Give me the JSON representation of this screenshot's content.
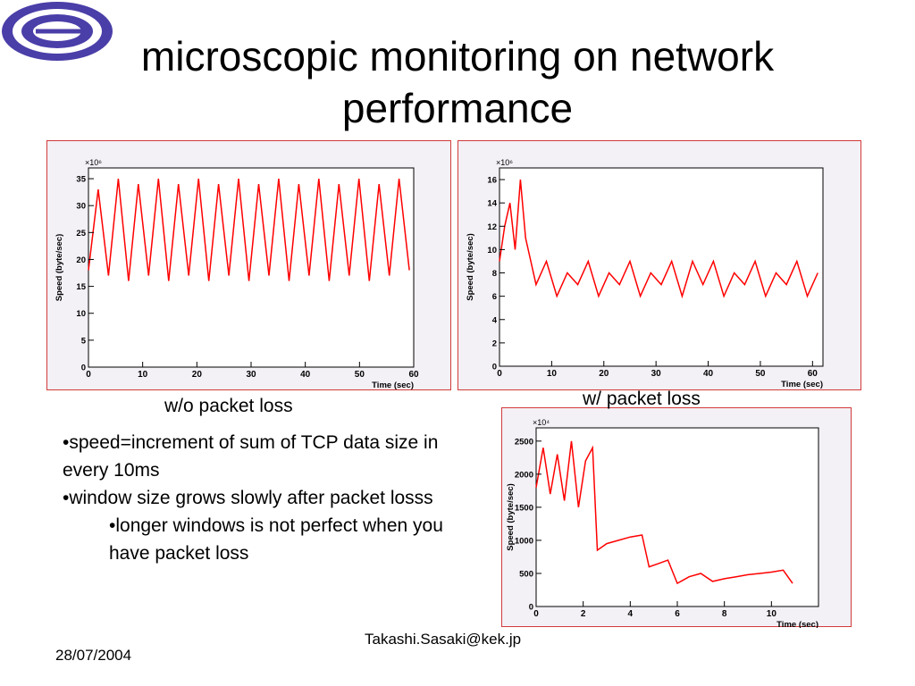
{
  "title": "microscopic monitoring on network performance",
  "captions": {
    "left": "w/o packet loss",
    "right": "w/ packet loss"
  },
  "bullets": [
    "•speed=increment of sum of TCP data size in every 10ms",
    "•window size grows slowly after packet losss"
  ],
  "sub_bullets": [
    "•longer windows is not perfect when you have packet loss"
  ],
  "footer": {
    "email": "Takashi.Sasaki@kek.jp",
    "date": "28/07/2004"
  },
  "colors": {
    "trace": "#ff0000",
    "panel_border": "#d23a3a",
    "panel_bg": "#f3f0f6",
    "logo": "#4a3ea8"
  },
  "chart_data": [
    {
      "type": "line",
      "title": "",
      "xlabel": "Time (sec)",
      "ylabel": "Speed (byte/sec)",
      "y_multiplier": "×10⁶",
      "xlim": [
        0,
        60
      ],
      "ylim": [
        0,
        37
      ],
      "xticks": [
        0,
        10,
        20,
        30,
        40,
        50,
        60
      ],
      "yticks": [
        0,
        5,
        10,
        15,
        20,
        25,
        30,
        35
      ],
      "grid": false,
      "sawtooth": {
        "period_sec": 3.7,
        "start_sec": 0,
        "end_sec": 60,
        "base": 15,
        "peak": 35
      },
      "series": [
        {
          "values_note": "",
          "x": [
            0,
            1.8,
            3.7,
            5.5,
            7.4,
            9.2,
            11.1,
            12.9,
            14.8,
            16.6,
            18.5,
            20.3,
            22.2,
            24.0,
            25.9,
            27.7,
            29.6,
            31.4,
            33.3,
            35.1,
            37.0,
            38.8,
            40.7,
            42.5,
            44.4,
            46.2,
            48.1,
            49.9,
            51.8,
            53.6,
            55.5,
            57.3,
            59.2
          ],
          "y": [
            18,
            33,
            17,
            35,
            16,
            34,
            17,
            35,
            16,
            34,
            17,
            35,
            16,
            34,
            17,
            35,
            16,
            34,
            17,
            35,
            16,
            34,
            17,
            35,
            16,
            34,
            17,
            35,
            16,
            34,
            17,
            35,
            18
          ]
        }
      ]
    },
    {
      "type": "line",
      "title": "",
      "xlabel": "Time (sec)",
      "ylabel": "Speed (byte/sec)",
      "y_multiplier": "×10⁶",
      "xlim": [
        0,
        62
      ],
      "ylim": [
        0,
        17
      ],
      "xticks": [
        0,
        10,
        20,
        30,
        40,
        50,
        60
      ],
      "yticks": [
        0,
        2,
        4,
        6,
        8,
        10,
        12,
        14,
        16
      ],
      "grid": false,
      "series": [
        {
          "x": [
            0,
            1,
            2,
            3,
            4,
            5,
            7,
            9,
            11,
            13,
            15,
            17,
            19,
            21,
            23,
            25,
            27,
            29,
            31,
            33,
            35,
            37,
            39,
            41,
            43,
            45,
            47,
            49,
            51,
            53,
            55,
            57,
            59,
            61
          ],
          "y": [
            9,
            12,
            14,
            10,
            16,
            11,
            7,
            9,
            6,
            8,
            7,
            9,
            6,
            8,
            7,
            9,
            6,
            8,
            7,
            9,
            6,
            9,
            7,
            9,
            6,
            8,
            7,
            9,
            6,
            8,
            7,
            9,
            6,
            8
          ]
        }
      ]
    },
    {
      "type": "line",
      "title": "",
      "xlabel": "Time (sec)",
      "ylabel": "Speed (byte/sec)",
      "y_multiplier": "×10⁴",
      "xlim": [
        0,
        12
      ],
      "ylim": [
        0,
        2700
      ],
      "xticks": [
        0,
        2,
        4,
        6,
        8,
        10
      ],
      "yticks": [
        0,
        500,
        1000,
        1500,
        2000,
        2500
      ],
      "grid": false,
      "series": [
        {
          "x": [
            0,
            0.3,
            0.6,
            0.9,
            1.2,
            1.5,
            1.8,
            2.1,
            2.4,
            2.6,
            3.0,
            3.5,
            4.0,
            4.5,
            4.8,
            5.2,
            5.6,
            6.0,
            6.5,
            7.0,
            7.5,
            8.0,
            8.5,
            9.0,
            9.5,
            10.0,
            10.5,
            10.9
          ],
          "y": [
            1800,
            2400,
            1700,
            2300,
            1600,
            2500,
            1500,
            2200,
            2400,
            850,
            950,
            1000,
            1050,
            1080,
            600,
            650,
            700,
            350,
            450,
            500,
            380,
            420,
            450,
            480,
            500,
            520,
            550,
            350
          ]
        }
      ]
    }
  ]
}
